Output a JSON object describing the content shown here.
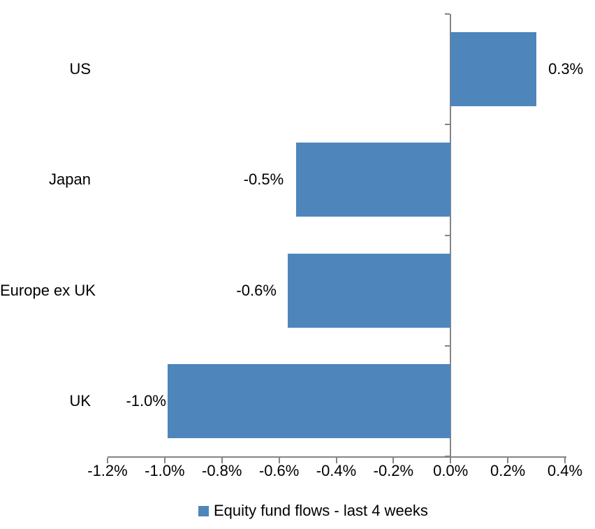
{
  "chart_data": {
    "type": "bar",
    "orientation": "horizontal",
    "title": "",
    "xlabel": "",
    "ylabel": "",
    "categories": [
      "US",
      "Japan",
      "Europe ex UK",
      "UK"
    ],
    "series": [
      {
        "name": "Equity fund flows - last 4 weeks",
        "values": [
          0.3,
          -0.54,
          -0.57,
          -0.99
        ],
        "data_labels": [
          "0.3%",
          "-0.5%",
          "-0.6%",
          "-1.0%"
        ]
      }
    ],
    "series_name": "Equity fund flows - last 4 weeks",
    "xlim": [
      -1.2,
      0.4
    ],
    "x_ticks": [
      -1.2,
      -1.0,
      -0.8,
      -0.6,
      -0.4,
      -0.2,
      0.0,
      0.2,
      0.4
    ],
    "x_tick_labels": [
      "-1.2%",
      "-1.0%",
      "-0.8%",
      "-0.6%",
      "-0.4%",
      "-0.2%",
      "0.0%",
      "0.2%",
      "0.4%"
    ],
    "grid": false,
    "legend_position": "bottom",
    "colors": {
      "bar": "#4E86BC",
      "axis": "#848484",
      "text": "#000000",
      "background": "#FFFFFF"
    }
  },
  "legend": {
    "label": "Equity fund flows - last 4 weeks"
  }
}
